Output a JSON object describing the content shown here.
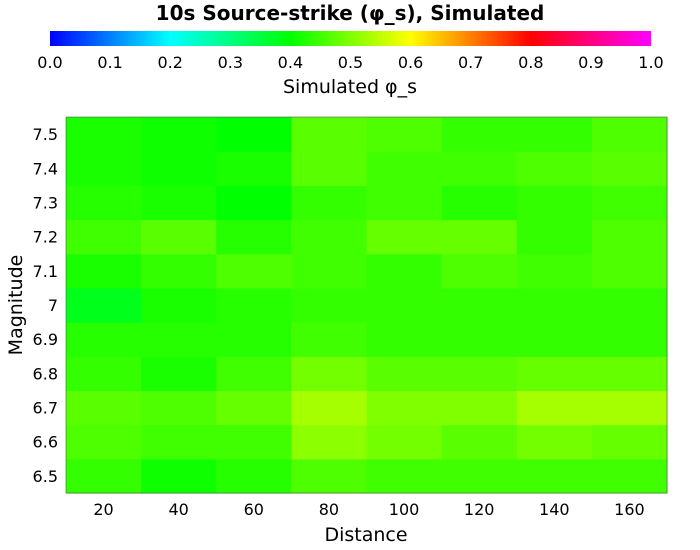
{
  "chart_data": {
    "type": "heatmap",
    "title": "10s Source-strike (φ_s), Simulated",
    "xlabel": "Distance",
    "ylabel": "Magnitude",
    "colorbar": {
      "label": "Simulated φ_s",
      "range": [
        0.0,
        1.0
      ],
      "ticks": [
        "0.0",
        "0.1",
        "0.2",
        "0.3",
        "0.4",
        "0.5",
        "0.6",
        "0.7",
        "0.8",
        "0.9",
        "1.0"
      ],
      "colormap": "rainbow: blue-cyan-green-yellow-red-magenta",
      "stops": [
        {
          "value": 0.0,
          "color": "#0000ff"
        },
        {
          "value": 0.2,
          "color": "#00ffff"
        },
        {
          "value": 0.4,
          "color": "#00ff00"
        },
        {
          "value": 0.6,
          "color": "#ffff00"
        },
        {
          "value": 0.8,
          "color": "#ff0000"
        },
        {
          "value": 1.0,
          "color": "#ff00ff"
        }
      ]
    },
    "x": [
      "20",
      "40",
      "60",
      "80",
      "100",
      "120",
      "140",
      "160"
    ],
    "y": [
      "6.5",
      "6.6",
      "6.7",
      "6.8",
      "6.9",
      "7",
      "7.1",
      "7.2",
      "7.3",
      "7.4",
      "7.5"
    ],
    "values": [
      [
        0.44,
        0.41,
        0.43,
        0.46,
        0.45,
        0.45,
        0.45,
        0.45
      ],
      [
        0.46,
        0.45,
        0.45,
        0.51,
        0.49,
        0.47,
        0.49,
        0.48
      ],
      [
        0.47,
        0.46,
        0.48,
        0.53,
        0.5,
        0.5,
        0.53,
        0.53
      ],
      [
        0.44,
        0.42,
        0.45,
        0.49,
        0.47,
        0.47,
        0.48,
        0.48
      ],
      [
        0.43,
        0.43,
        0.43,
        0.45,
        0.44,
        0.44,
        0.44,
        0.44
      ],
      [
        0.38,
        0.42,
        0.43,
        0.44,
        0.44,
        0.44,
        0.44,
        0.44
      ],
      [
        0.42,
        0.44,
        0.46,
        0.45,
        0.44,
        0.46,
        0.45,
        0.46
      ],
      [
        0.45,
        0.47,
        0.43,
        0.45,
        0.48,
        0.48,
        0.44,
        0.46
      ],
      [
        0.43,
        0.42,
        0.4,
        0.44,
        0.45,
        0.43,
        0.44,
        0.45
      ],
      [
        0.42,
        0.41,
        0.42,
        0.47,
        0.45,
        0.45,
        0.46,
        0.47
      ],
      [
        0.42,
        0.41,
        0.4,
        0.47,
        0.46,
        0.44,
        0.44,
        0.46
      ]
    ],
    "grid": false
  }
}
